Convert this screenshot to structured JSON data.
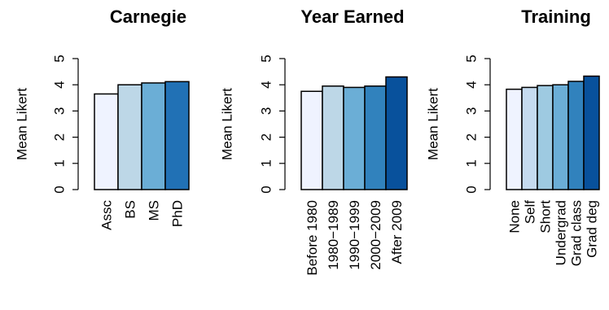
{
  "chart_data": [
    {
      "type": "bar",
      "title": "Carnegie",
      "ylabel": "Mean Likert",
      "xlabel": "",
      "ylim": [
        0,
        5
      ],
      "yticks": [
        "0",
        "1",
        "2",
        "3",
        "4",
        "5"
      ],
      "categories": [
        "Assc",
        "BS",
        "MS",
        "PhD"
      ],
      "values": [
        3.65,
        4.0,
        4.07,
        4.12
      ],
      "colors": [
        "#EFF3FF",
        "#BDD7E7",
        "#6BAED6",
        "#2171B5"
      ]
    },
    {
      "type": "bar",
      "title": "Year Earned",
      "ylabel": "Mean Likert",
      "xlabel": "",
      "ylim": [
        0,
        5
      ],
      "yticks": [
        "0",
        "1",
        "2",
        "3",
        "4",
        "5"
      ],
      "categories": [
        "Before 1980",
        "1980−1989",
        "1990−1999",
        "2000−2009",
        "After 2009"
      ],
      "values": [
        3.75,
        3.95,
        3.9,
        3.95,
        4.3
      ],
      "colors": [
        "#EFF3FF",
        "#BDD7E7",
        "#6BAED6",
        "#3182BD",
        "#08519C"
      ]
    },
    {
      "type": "bar",
      "title": "Training",
      "ylabel": "Mean Likert",
      "xlabel": "",
      "ylim": [
        0,
        5
      ],
      "yticks": [
        "0",
        "1",
        "2",
        "3",
        "4",
        "5"
      ],
      "categories": [
        "None",
        "Self",
        "Short",
        "Undergrad",
        "Grad class",
        "Grad deg"
      ],
      "values": [
        3.83,
        3.9,
        3.97,
        4.0,
        4.13,
        4.33
      ],
      "colors": [
        "#EFF3FF",
        "#C6DBEF",
        "#9ECAE1",
        "#6BAED6",
        "#3182BD",
        "#08519C"
      ]
    }
  ]
}
